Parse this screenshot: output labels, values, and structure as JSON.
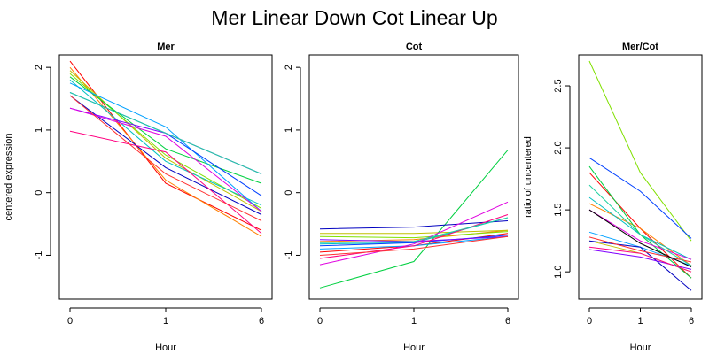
{
  "title": "Mer Linear Down Cot Linear Up",
  "colors": [
    "#ff0000",
    "#ff8000",
    "#c0c000",
    "#80e000",
    "#00d040",
    "#00c0c0",
    "#00a0ff",
    "#0040ff",
    "#0000c0",
    "#8000ff",
    "#e000e0",
    "#ff0080",
    "#ff3030",
    "#20d0a0"
  ],
  "chart_data": [
    {
      "type": "line",
      "title": "Mer",
      "xlabel": "Hour",
      "ylabel": "centered expression",
      "categories": [
        "0",
        "1",
        "6"
      ],
      "ylim": [
        -1.7,
        2.2
      ],
      "yticks": [
        -1,
        0,
        1,
        2
      ],
      "series": [
        {
          "values": [
            2.1,
            0.15,
            -0.6
          ]
        },
        {
          "values": [
            2.0,
            0.2,
            -0.7
          ]
        },
        {
          "values": [
            1.95,
            0.55,
            -0.3
          ]
        },
        {
          "values": [
            1.9,
            0.6,
            -0.25
          ]
        },
        {
          "values": [
            1.85,
            0.7,
            0.15
          ]
        },
        {
          "values": [
            1.8,
            0.5,
            -0.2
          ]
        },
        {
          "values": [
            1.75,
            1.05,
            -0.3
          ]
        },
        {
          "values": [
            1.6,
            0.95,
            -0.05
          ]
        },
        {
          "values": [
            1.55,
            0.4,
            -0.35
          ]
        },
        {
          "values": [
            1.35,
            0.95,
            0.3
          ]
        },
        {
          "values": [
            1.35,
            0.9,
            -0.3
          ]
        },
        {
          "values": [
            0.98,
            0.65,
            -0.65
          ]
        },
        {
          "values": [
            1.55,
            0.3,
            -0.45
          ]
        },
        {
          "values": [
            1.6,
            0.95,
            0.3
          ]
        }
      ]
    },
    {
      "type": "line",
      "title": "Cot",
      "xlabel": "Hour",
      "ylabel": "",
      "categories": [
        "0",
        "1",
        "6"
      ],
      "ylim": [
        -1.7,
        2.2
      ],
      "yticks": [
        -1,
        0,
        1,
        2
      ],
      "series": [
        {
          "values": [
            -0.95,
            -0.85,
            -0.65
          ]
        },
        {
          "values": [
            -0.78,
            -0.75,
            -0.6
          ]
        },
        {
          "values": [
            -0.65,
            -0.65,
            -0.6
          ]
        },
        {
          "values": [
            -0.7,
            -0.72,
            -0.62
          ]
        },
        {
          "values": [
            -1.52,
            -1.1,
            0.68
          ]
        },
        {
          "values": [
            -0.82,
            -0.8,
            -0.4
          ]
        },
        {
          "values": [
            -0.9,
            -0.85,
            -0.7
          ]
        },
        {
          "values": [
            -0.85,
            -0.8,
            -0.68
          ]
        },
        {
          "values": [
            -0.58,
            -0.55,
            -0.45
          ]
        },
        {
          "values": [
            -0.75,
            -0.78,
            -0.7
          ]
        },
        {
          "values": [
            -1.15,
            -0.82,
            -0.15
          ]
        },
        {
          "values": [
            -1.05,
            -0.85,
            -0.35
          ]
        },
        {
          "values": [
            -1.0,
            -0.9,
            -0.7
          ]
        },
        {
          "values": [
            -0.8,
            -0.78,
            -0.4
          ]
        }
      ]
    },
    {
      "type": "line",
      "title": "Mer/Cot",
      "xlabel": "Hour",
      "ylabel": "ratio of uncentered",
      "categories": [
        "0",
        "1",
        "6"
      ],
      "ylim": [
        0.78,
        2.75
      ],
      "yticks": [
        1.0,
        1.5,
        2.0,
        2.5
      ],
      "ytick_labels": [
        "1.0",
        "1.5",
        "2.0",
        "2.5"
      ],
      "series": [
        {
          "values": [
            1.8,
            1.35,
            0.95
          ]
        },
        {
          "values": [
            1.55,
            1.35,
            1.05
          ]
        },
        {
          "values": [
            1.25,
            1.15,
            1.0
          ]
        },
        {
          "values": [
            2.7,
            1.8,
            1.25
          ]
        },
        {
          "values": [
            1.85,
            1.3,
            0.95
          ]
        },
        {
          "values": [
            1.6,
            1.3,
            1.1
          ]
        },
        {
          "values": [
            1.32,
            1.2,
            1.05
          ]
        },
        {
          "values": [
            1.92,
            1.65,
            1.27
          ]
        },
        {
          "values": [
            1.25,
            1.2,
            0.85
          ]
        },
        {
          "values": [
            1.18,
            1.12,
            1.02
          ]
        },
        {
          "values": [
            1.5,
            1.25,
            1.1
          ]
        },
        {
          "values": [
            1.2,
            1.15,
            1.0
          ]
        },
        {
          "values": [
            1.28,
            1.17,
            1.08
          ]
        },
        {
          "values": [
            1.7,
            1.3,
            1.05
          ]
        }
      ],
      "mean": [
        1.5,
        1.23,
        1.04
      ]
    }
  ]
}
